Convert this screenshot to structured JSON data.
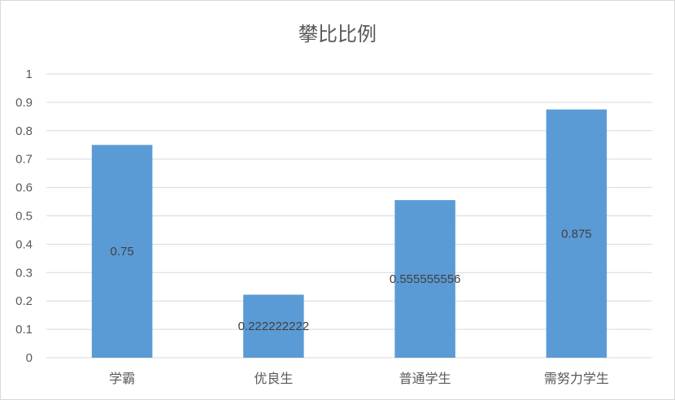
{
  "chart_data": {
    "type": "bar",
    "title": "攀比比例",
    "categories": [
      "学霸",
      "优良生",
      "普通学生",
      "需努力学生"
    ],
    "values": [
      0.75,
      0.222222222,
      0.555555556,
      0.875
    ],
    "data_labels": [
      "0.75",
      "0.222222222",
      "0.555555556",
      "0.875"
    ],
    "yticks": [
      "0",
      "0.1",
      "0.2",
      "0.3",
      "0.4",
      "0.5",
      "0.6",
      "0.7",
      "0.8",
      "0.9",
      "1"
    ],
    "ylim": [
      0,
      1
    ],
    "xlabel": "",
    "ylabel": "",
    "grid": true,
    "legend": "none",
    "bar_color": "#5b9bd5",
    "grid_color": "#d9d9d9"
  }
}
